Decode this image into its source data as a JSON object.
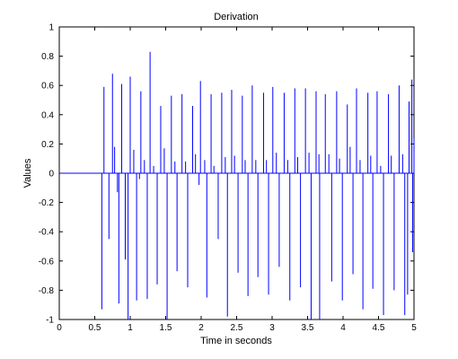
{
  "chart_data": {
    "type": "line",
    "title": "Derivation",
    "xlabel": "Time in seconds",
    "ylabel": "Values",
    "xlim": [
      0,
      5
    ],
    "ylim": [
      -1,
      1
    ],
    "x_ticks": [
      "0",
      "0.5",
      "1",
      "1.5",
      "2",
      "2.5",
      "3",
      "3.5",
      "4",
      "4.5",
      "5"
    ],
    "y_ticks": [
      "-1",
      "-0.8",
      "-0.6",
      "-0.4",
      "-0.2",
      "0",
      "0.2",
      "0.4",
      "0.6",
      "0.8",
      "1"
    ],
    "grid": false,
    "series": [
      {
        "color": "#0000ff",
        "baseline": 0,
        "baseline_from_x": 0,
        "spikes_positive": [
          {
            "x": 0.63,
            "y": 0.59
          },
          {
            "x": 0.75,
            "y": 0.68
          },
          {
            "x": 0.78,
            "y": 0.18
          },
          {
            "x": 0.88,
            "y": 0.61
          },
          {
            "x": 1.0,
            "y": 0.66
          },
          {
            "x": 1.05,
            "y": 0.16
          },
          {
            "x": 1.15,
            "y": 0.56
          },
          {
            "x": 1.2,
            "y": 0.09
          },
          {
            "x": 1.28,
            "y": 0.83
          },
          {
            "x": 1.33,
            "y": 0.05
          },
          {
            "x": 1.43,
            "y": 0.46
          },
          {
            "x": 1.48,
            "y": 0.17
          },
          {
            "x": 1.58,
            "y": 0.53
          },
          {
            "x": 1.63,
            "y": 0.08
          },
          {
            "x": 1.73,
            "y": 0.54
          },
          {
            "x": 1.78,
            "y": 0.08
          },
          {
            "x": 1.88,
            "y": 0.46
          },
          {
            "x": 1.92,
            "y": 0.13
          },
          {
            "x": 1.99,
            "y": 0.63
          },
          {
            "x": 2.05,
            "y": 0.09
          },
          {
            "x": 2.14,
            "y": 0.54
          },
          {
            "x": 2.18,
            "y": 0.05
          },
          {
            "x": 2.29,
            "y": 0.55
          },
          {
            "x": 2.34,
            "y": 0.11
          },
          {
            "x": 2.43,
            "y": 0.57
          },
          {
            "x": 2.47,
            "y": 0.12
          },
          {
            "x": 2.58,
            "y": 0.53
          },
          {
            "x": 2.62,
            "y": 0.09
          },
          {
            "x": 2.72,
            "y": 0.6
          },
          {
            "x": 2.77,
            "y": 0.09
          },
          {
            "x": 2.88,
            "y": 0.55
          },
          {
            "x": 2.92,
            "y": 0.09
          },
          {
            "x": 3.01,
            "y": 0.59
          },
          {
            "x": 3.06,
            "y": 0.14
          },
          {
            "x": 3.17,
            "y": 0.55
          },
          {
            "x": 3.22,
            "y": 0.09
          },
          {
            "x": 3.32,
            "y": 0.58
          },
          {
            "x": 3.36,
            "y": 0.11
          },
          {
            "x": 3.47,
            "y": 0.58
          },
          {
            "x": 3.52,
            "y": 0.14
          },
          {
            "x": 3.62,
            "y": 0.56
          },
          {
            "x": 3.66,
            "y": 0.13
          },
          {
            "x": 3.75,
            "y": 0.54
          },
          {
            "x": 3.8,
            "y": 0.13
          },
          {
            "x": 3.91,
            "y": 0.56
          },
          {
            "x": 3.95,
            "y": 0.1
          },
          {
            "x": 4.06,
            "y": 0.47
          },
          {
            "x": 4.1,
            "y": 0.18
          },
          {
            "x": 4.19,
            "y": 0.58
          },
          {
            "x": 4.24,
            "y": 0.09
          },
          {
            "x": 4.35,
            "y": 0.55
          },
          {
            "x": 4.39,
            "y": 0.12
          },
          {
            "x": 4.48,
            "y": 0.56
          },
          {
            "x": 4.53,
            "y": 0.05
          },
          {
            "x": 4.64,
            "y": 0.54
          },
          {
            "x": 4.68,
            "y": 0.12
          },
          {
            "x": 4.79,
            "y": 0.6
          },
          {
            "x": 4.84,
            "y": 0.13
          },
          {
            "x": 4.93,
            "y": 0.49
          },
          {
            "x": 4.97,
            "y": 0.64
          },
          {
            "x": 5.0,
            "y": 0.24
          }
        ],
        "spikes_negative": [
          {
            "x": 0.6,
            "y": -0.93
          },
          {
            "x": 0.7,
            "y": -0.45
          },
          {
            "x": 0.82,
            "y": -0.13
          },
          {
            "x": 0.84,
            "y": -0.89
          },
          {
            "x": 0.93,
            "y": -0.59
          },
          {
            "x": 0.97,
            "y": -1.0
          },
          {
            "x": 1.09,
            "y": -0.87
          },
          {
            "x": 1.13,
            "y": -0.04
          },
          {
            "x": 1.24,
            "y": -0.86
          },
          {
            "x": 1.38,
            "y": -0.76
          },
          {
            "x": 1.52,
            "y": -1.0
          },
          {
            "x": 1.66,
            "y": -0.67
          },
          {
            "x": 1.81,
            "y": -0.78
          },
          {
            "x": 1.97,
            "y": -0.08
          },
          {
            "x": 2.08,
            "y": -0.85
          },
          {
            "x": 2.24,
            "y": -0.45
          },
          {
            "x": 2.37,
            "y": -0.98
          },
          {
            "x": 2.52,
            "y": -0.68
          },
          {
            "x": 2.66,
            "y": -0.84
          },
          {
            "x": 2.8,
            "y": -0.71
          },
          {
            "x": 2.95,
            "y": -0.83
          },
          {
            "x": 3.1,
            "y": -0.64
          },
          {
            "x": 3.25,
            "y": -0.87
          },
          {
            "x": 3.4,
            "y": -0.78
          },
          {
            "x": 3.55,
            "y": -1.0
          },
          {
            "x": 3.67,
            "y": -1.0
          },
          {
            "x": 3.84,
            "y": -0.74
          },
          {
            "x": 3.99,
            "y": -0.87
          },
          {
            "x": 4.14,
            "y": -0.69
          },
          {
            "x": 4.28,
            "y": -0.93
          },
          {
            "x": 4.42,
            "y": -0.79
          },
          {
            "x": 4.57,
            "y": -0.97
          },
          {
            "x": 4.72,
            "y": -0.8
          },
          {
            "x": 4.87,
            "y": -0.97
          },
          {
            "x": 4.91,
            "y": -0.83
          },
          {
            "x": 4.98,
            "y": -0.54
          }
        ]
      }
    ]
  }
}
